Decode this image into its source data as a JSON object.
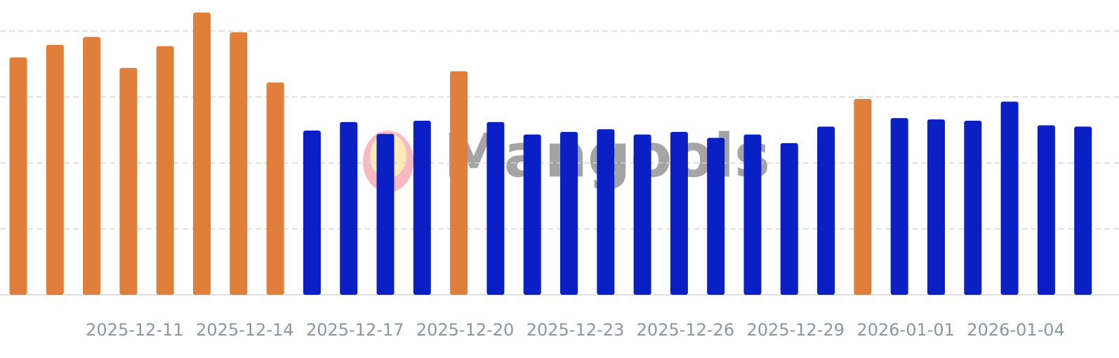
{
  "chart_data": {
    "type": "bar",
    "watermark": "Mangools",
    "categories": [
      null,
      null,
      null,
      "2025-12-11",
      null,
      null,
      "2025-12-14",
      null,
      null,
      "2025-12-17",
      null,
      null,
      "2025-12-20",
      null,
      null,
      "2025-12-23",
      null,
      null,
      "2025-12-26",
      null,
      null,
      "2025-12-29",
      null,
      null,
      "2026-01-01",
      null,
      null,
      "2026-01-04",
      null,
      null
    ],
    "values": [
      3.6,
      3.79,
      3.91,
      3.44,
      3.77,
      4.28,
      3.98,
      3.22,
      2.49,
      2.62,
      2.44,
      2.64,
      3.39,
      2.62,
      2.43,
      2.47,
      2.51,
      2.43,
      2.47,
      2.38,
      2.43,
      2.3,
      2.55,
      2.97,
      2.68,
      2.66,
      2.64,
      2.93,
      2.57,
      2.55
    ],
    "colors": [
      "#e07f3c",
      "#e07f3c",
      "#e07f3c",
      "#e07f3c",
      "#e07f3c",
      "#e07f3c",
      "#e07f3c",
      "#e07f3c",
      "#0a1fc4",
      "#0a1fc4",
      "#0a1fc4",
      "#0a1fc4",
      "#e07f3c",
      "#0a1fc4",
      "#0a1fc4",
      "#0a1fc4",
      "#0a1fc4",
      "#0a1fc4",
      "#0a1fc4",
      "#0a1fc4",
      "#0a1fc4",
      "#0a1fc4",
      "#0a1fc4",
      "#e07f3c",
      "#0a1fc4",
      "#0a1fc4",
      "#0a1fc4",
      "#0a1fc4",
      "#0a1fc4",
      "#0a1fc4"
    ],
    "ylim": [
      0,
      4.47
    ],
    "yticks": [
      0,
      1,
      2,
      3,
      4
    ],
    "grid": true
  }
}
